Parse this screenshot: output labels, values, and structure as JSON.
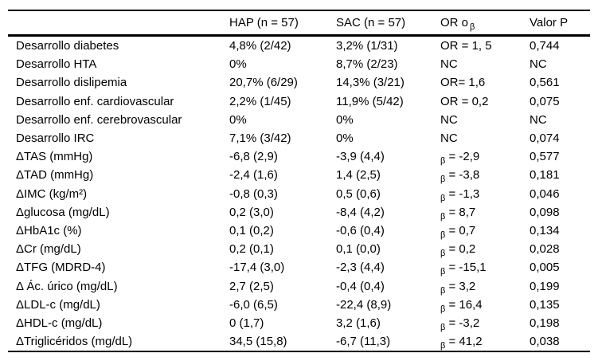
{
  "table": {
    "header": {
      "parameter": "",
      "hap": "HAP (n = 57)",
      "sac": "SAC (n = 57)",
      "or_label": "OR o",
      "or_sub": "β",
      "p": "Valor P"
    },
    "rows": [
      {
        "label": "Desarrollo diabetes",
        "hap": "4,8% (2/42)",
        "sac": "3,2% (1/31)",
        "or_sub": "",
        "or_text": "OR = 1, 5",
        "p": "0,744"
      },
      {
        "label": "Desarrollo HTA",
        "hap": "0%",
        "sac": "8,7% (2/23)",
        "or_sub": "",
        "or_text": "NC",
        "p": "NC"
      },
      {
        "label": "Desarrollo dislipemia",
        "hap": "20,7% (6/29)",
        "sac": "14,3% (3/21)",
        "or_sub": "",
        "or_text": "OR= 1,6",
        "p": "0,561"
      },
      {
        "label": "Desarrollo enf. cardiovascular",
        "hap": "2,2% (1/45)",
        "sac": "11,9% (5/42)",
        "or_sub": "",
        "or_text": "OR = 0,2",
        "p": "0,075"
      },
      {
        "label": "Desarrollo enf. cerebrovascular",
        "hap": "0%",
        "sac": "0%",
        "or_sub": "",
        "or_text": "NC",
        "p": "NC"
      },
      {
        "label": "Desarrollo IRC",
        "hap": "7,1% (3/42)",
        "sac": "0%",
        "or_sub": "",
        "or_text": "NC",
        "p": "0,074"
      },
      {
        "label": "ΔTAS (mmHg)",
        "hap": "-6,8 (2,9)",
        "sac": "-3,9 (4,4)",
        "or_sub": "β",
        "or_text": " = -2,9",
        "p": "0,577"
      },
      {
        "label": "ΔTAD (mmHg)",
        "hap": "-2,4 (1,6)",
        "sac": "1,4 (2,5)",
        "or_sub": "β",
        "or_text": " = -3,8",
        "p": "0,181"
      },
      {
        "label": "ΔIMC (kg/m²)",
        "hap": "-0,8 (0,3)",
        "sac": "0,5 (0,6)",
        "or_sub": "β",
        "or_text": " = -1,3",
        "p": "0,046"
      },
      {
        "label": "Δglucosa (mg/dL)",
        "hap": "0,2 (3,0)",
        "sac": "-8,4 (4,2)",
        "or_sub": "β",
        "or_text": " = 8,7",
        "p": "0,098"
      },
      {
        "label": "ΔHbA1c (%)",
        "hap": "0,1 (0,2)",
        "sac": "-0,6 (0,4)",
        "or_sub": "β",
        "or_text": " = 0,7",
        "p": "0,134"
      },
      {
        "label": "ΔCr (mg/dL)",
        "hap": "0,2 (0,1)",
        "sac": "0,1 (0,0)",
        "or_sub": "β",
        "or_text": " = 0,2",
        "p": "0,028"
      },
      {
        "label": "ΔTFG (MDRD-4)",
        "hap": "-17,4 (3,0)",
        "sac": "-2,3 (4,4)",
        "or_sub": "β",
        "or_text": " = -15,1",
        "p": "0,005"
      },
      {
        "label": "Δ Ác. úrico (mg/dL)",
        "hap": "2,7 (2,5)",
        "sac": "-0,4 (0,4)",
        "or_sub": "β",
        "or_text": " = 3,2",
        "p": "0,199"
      },
      {
        "label": "ΔLDL-c (mg/dL)",
        "hap": "-6,0 (6,5)",
        "sac": "-22,4 (8,9)",
        "or_sub": "β",
        "or_text": " = 16,4",
        "p": "0,135"
      },
      {
        "label": "ΔHDL-c (mg/dL)",
        "hap": "0 (1,7)",
        "sac": "3,2 (1,6)",
        "or_sub": "β",
        "or_text": " = -3,2",
        "p": "0,198"
      },
      {
        "label": "ΔTriglicéridos (mg/dL)",
        "hap": "34,5 (15,8)",
        "sac": "-6,7 (11,3)",
        "or_sub": "β",
        "or_text": " = 41,2",
        "p": "0,038"
      }
    ],
    "colors": {
      "text": "#000000",
      "background": "#ffffff",
      "border": "#000000"
    }
  }
}
